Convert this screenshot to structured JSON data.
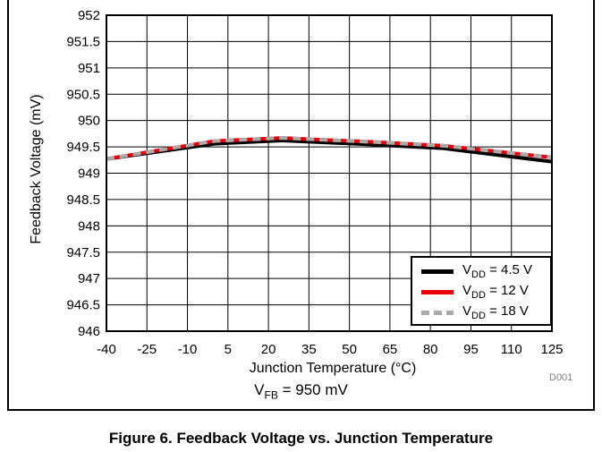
{
  "chart_data": {
    "type": "line",
    "xlabel": "Junction Temperature (°C)",
    "ylabel": "Feedback Voltage (mV)",
    "xlim": [
      -40,
      125
    ],
    "ylim": [
      946,
      952
    ],
    "xticks": [
      -40,
      -25,
      -10,
      5,
      20,
      35,
      50,
      65,
      80,
      95,
      110,
      125
    ],
    "yticks": [
      946,
      946.5,
      947,
      947.5,
      948,
      948.5,
      949,
      949.5,
      950,
      950.5,
      951,
      951.5,
      952
    ],
    "ytick_labels": [
      "946",
      "946.5",
      "947",
      "947.5",
      "948",
      "948.5",
      "949",
      "949.5",
      "950",
      "950.5",
      "951",
      "951.5",
      "952"
    ],
    "grid": true,
    "legend_position": "bottom-right",
    "series": [
      {
        "name": "VDD = 4.5 V",
        "color": "#000000",
        "dash": "solid",
        "x": [
          -40,
          0,
          25,
          60,
          85,
          125
        ],
        "y": [
          949.27,
          949.56,
          949.62,
          949.54,
          949.47,
          949.22
        ]
      },
      {
        "name": "VDD = 12 V",
        "color": "#e8000b",
        "dash": "solid",
        "x": [
          -40,
          0,
          25,
          60,
          85,
          125
        ],
        "y": [
          949.27,
          949.61,
          949.67,
          949.59,
          949.52,
          949.3
        ]
      },
      {
        "name": "VDD = 18 V",
        "color": "#aaaaaa",
        "dash": "dashed",
        "x": [
          -40,
          0,
          25,
          60,
          85,
          125
        ],
        "y": [
          949.27,
          949.61,
          949.67,
          949.59,
          949.52,
          949.3
        ]
      }
    ]
  },
  "legend": {
    "items": [
      {
        "prefix": "V",
        "sub": "DD",
        "suffix": " = 4.5 V",
        "color": "#000000"
      },
      {
        "prefix": "V",
        "sub": "DD",
        "suffix": " = 12 V",
        "color": "#e8000b"
      },
      {
        "prefix": "V",
        "sub": "DD",
        "suffix": " = 18 V",
        "color": "#aaaaaa"
      }
    ]
  },
  "condition": {
    "prefix": "V",
    "sub": "FB",
    "suffix": " = 950 mV"
  },
  "figure_code": "D001",
  "caption": "Figure 6. Feedback Voltage vs. Junction Temperature"
}
